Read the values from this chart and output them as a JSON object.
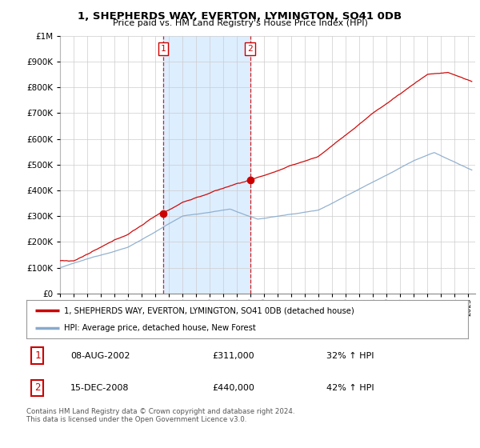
{
  "title1": "1, SHEPHERDS WAY, EVERTON, LYMINGTON, SO41 0DB",
  "title2": "Price paid vs. HM Land Registry's House Price Index (HPI)",
  "legend_label1": "1, SHEPHERDS WAY, EVERTON, LYMINGTON, SO41 0DB (detached house)",
  "legend_label2": "HPI: Average price, detached house, New Forest",
  "transaction1_date": "08-AUG-2002",
  "transaction1_price": "£311,000",
  "transaction1_hpi": "32% ↑ HPI",
  "transaction1_year": 2002.58,
  "transaction1_value": 311000,
  "transaction2_date": "15-DEC-2008",
  "transaction2_price": "£440,000",
  "transaction2_hpi": "42% ↑ HPI",
  "transaction2_year": 2008.96,
  "transaction2_value": 440000,
  "footer": "Contains HM Land Registry data © Crown copyright and database right 2024.\nThis data is licensed under the Open Government Licence v3.0.",
  "background_color": "#ffffff",
  "plot_bg_color": "#ffffff",
  "span_color": "#ddeeff",
  "grid_color": "#cccccc",
  "red_color": "#cc0000",
  "blue_color": "#88aacc",
  "ylim_min": 0,
  "ylim_max": 1000000,
  "xlim_min": 1995.0,
  "xlim_max": 2025.5
}
